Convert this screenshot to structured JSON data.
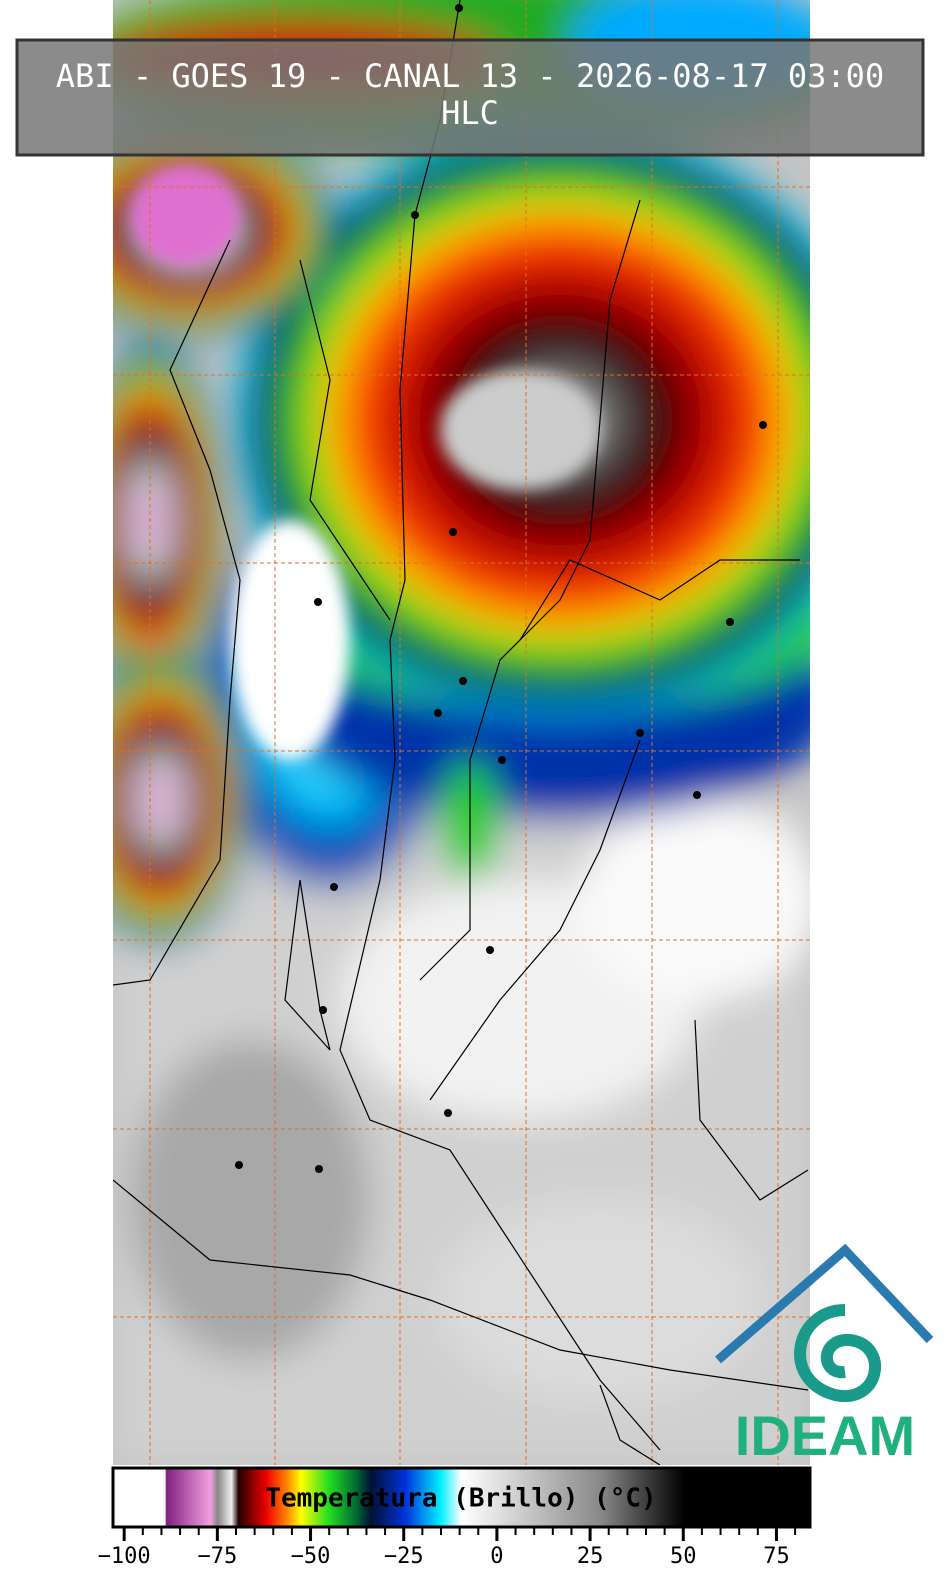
{
  "header": {
    "title": "ABI - GOES 19 - CANAL 13 - 2026-08-17 03:00",
    "subtitle": "HLC"
  },
  "colorbar": {
    "label": "Temperatura (Brillo) (°C)",
    "lim": [
      -103,
      84
    ],
    "ticks": [
      {
        "value": -100,
        "label": "−100"
      },
      {
        "value": -75,
        "label": "−75"
      },
      {
        "value": -50,
        "label": "−50"
      },
      {
        "value": -25,
        "label": "−25"
      },
      0,
      25,
      50,
      75
    ]
  },
  "logo": {
    "text": "IDEAM"
  }
}
